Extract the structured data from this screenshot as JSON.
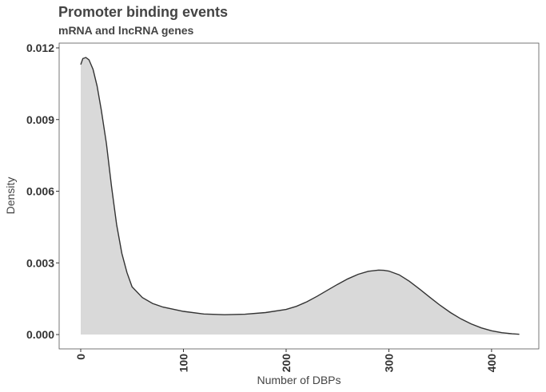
{
  "chart_data": {
    "type": "area",
    "title": "Promoter binding events",
    "subtitle": "mRNA and lncRNA genes",
    "xlabel": "Number of DBPs",
    "ylabel": "Density",
    "xlim": [
      -21,
      446
    ],
    "ylim": [
      -0.0006,
      0.0122
    ],
    "xticks": [
      0,
      100,
      200,
      300,
      400
    ],
    "yticks": [
      0.0,
      0.003,
      0.006,
      0.009,
      0.012
    ],
    "ytick_labels": [
      "0.000",
      "0.003",
      "0.006",
      "0.009",
      "0.012"
    ],
    "grid": false,
    "fill_color": "#d9d9d9",
    "line_color": "#333333",
    "series": [
      {
        "x": [
          0,
          2,
          5,
          8,
          12,
          16,
          20,
          25,
          30,
          35,
          40,
          45,
          50,
          60,
          70,
          80,
          100,
          120,
          140,
          160,
          180,
          200,
          210,
          220,
          230,
          240,
          250,
          260,
          270,
          280,
          290,
          295,
          300,
          310,
          320,
          330,
          340,
          350,
          360,
          370,
          380,
          390,
          400,
          410,
          420,
          427
        ],
        "y": [
          0.0113,
          0.01155,
          0.0116,
          0.0115,
          0.0111,
          0.0104,
          0.0094,
          0.008,
          0.0062,
          0.0046,
          0.0034,
          0.0026,
          0.002,
          0.00155,
          0.0013,
          0.00115,
          0.00097,
          0.00086,
          0.00083,
          0.00085,
          0.00092,
          0.00105,
          0.00118,
          0.00137,
          0.0016,
          0.00185,
          0.0021,
          0.00233,
          0.00252,
          0.00265,
          0.0027,
          0.00269,
          0.00266,
          0.0025,
          0.00223,
          0.0019,
          0.00156,
          0.00122,
          0.00092,
          0.00066,
          0.00045,
          0.00028,
          0.00016,
          8e-05,
          3e-05,
          1e-05
        ]
      }
    ]
  }
}
